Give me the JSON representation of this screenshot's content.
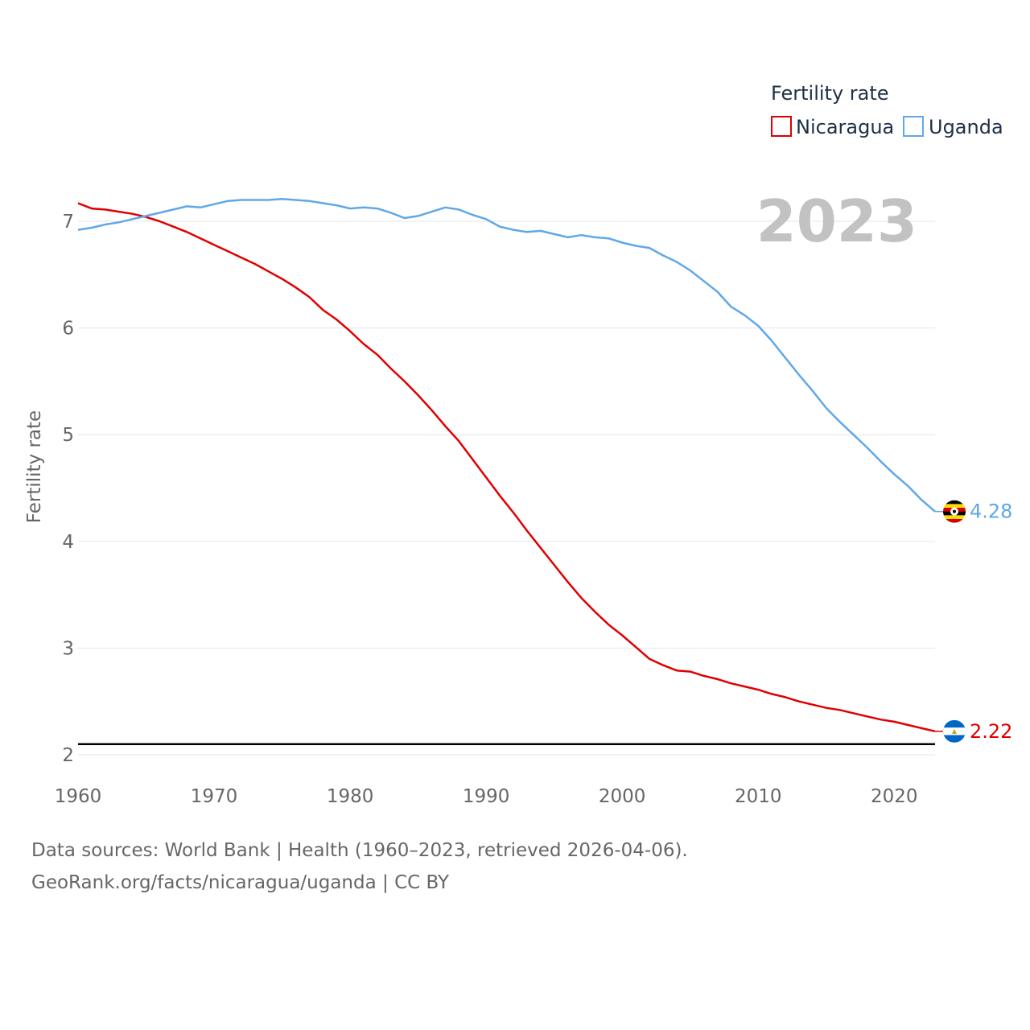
{
  "chart_data": {
    "type": "line",
    "title": "",
    "xlabel": "",
    "ylabel": "Fertility rate",
    "xlim": [
      1960,
      2023
    ],
    "ylim": [
      2,
      7.5
    ],
    "x_ticks": [
      1960,
      1970,
      1980,
      1990,
      2000,
      2010,
      2020
    ],
    "y_ticks": [
      2,
      3,
      4,
      5,
      6,
      7
    ],
    "grid": true,
    "legend_title": "Fertility rate",
    "legend_position": "top-right",
    "year_label": "2023",
    "reference_line": 2.1,
    "x": [
      1960,
      1961,
      1962,
      1963,
      1964,
      1965,
      1966,
      1967,
      1968,
      1969,
      1970,
      1971,
      1972,
      1973,
      1974,
      1975,
      1976,
      1977,
      1978,
      1979,
      1980,
      1981,
      1982,
      1983,
      1984,
      1985,
      1986,
      1987,
      1988,
      1989,
      1990,
      1991,
      1992,
      1993,
      1994,
      1995,
      1996,
      1997,
      1998,
      1999,
      2000,
      2001,
      2002,
      2003,
      2004,
      2005,
      2006,
      2007,
      2008,
      2009,
      2010,
      2011,
      2012,
      2013,
      2014,
      2015,
      2016,
      2017,
      2018,
      2019,
      2020,
      2021,
      2022,
      2023
    ],
    "series": [
      {
        "name": "Nicaragua",
        "color": "#e00000",
        "end_label": "2.22",
        "flag": "nicaragua-flag",
        "values": [
          7.17,
          7.12,
          7.11,
          7.09,
          7.07,
          7.04,
          7.0,
          6.95,
          6.9,
          6.84,
          6.78,
          6.72,
          6.66,
          6.6,
          6.53,
          6.46,
          6.38,
          6.29,
          6.17,
          6.08,
          5.97,
          5.85,
          5.75,
          5.62,
          5.5,
          5.37,
          5.23,
          5.08,
          4.94,
          4.77,
          4.6,
          4.43,
          4.27,
          4.1,
          3.94,
          3.78,
          3.62,
          3.47,
          3.34,
          3.22,
          3.12,
          3.01,
          2.9,
          2.84,
          2.79,
          2.78,
          2.74,
          2.71,
          2.67,
          2.64,
          2.61,
          2.57,
          2.54,
          2.5,
          2.47,
          2.44,
          2.42,
          2.39,
          2.36,
          2.33,
          2.31,
          2.28,
          2.25,
          2.22
        ]
      },
      {
        "name": "Uganda",
        "color": "#5fa8e8",
        "end_label": "4.28",
        "flag": "uganda-flag",
        "values": [
          6.92,
          6.94,
          6.97,
          6.99,
          7.02,
          7.05,
          7.08,
          7.11,
          7.14,
          7.13,
          7.16,
          7.19,
          7.2,
          7.2,
          7.2,
          7.21,
          7.2,
          7.19,
          7.17,
          7.15,
          7.12,
          7.13,
          7.12,
          7.08,
          7.03,
          7.05,
          7.09,
          7.13,
          7.11,
          7.06,
          7.02,
          6.95,
          6.92,
          6.9,
          6.91,
          6.88,
          6.85,
          6.87,
          6.85,
          6.84,
          6.8,
          6.77,
          6.75,
          6.68,
          6.62,
          6.54,
          6.44,
          6.34,
          6.2,
          6.12,
          6.02,
          5.88,
          5.72,
          5.56,
          5.41,
          5.25,
          5.12,
          5.0,
          4.88,
          4.75,
          4.63,
          4.52,
          4.39,
          4.28
        ]
      }
    ]
  },
  "sources": {
    "line1": "Data sources: World Bank | Health (1960–2023, retrieved 2026-04-06).",
    "line2": "GeoRank.org/facts/nicaragua/uganda | CC BY"
  }
}
